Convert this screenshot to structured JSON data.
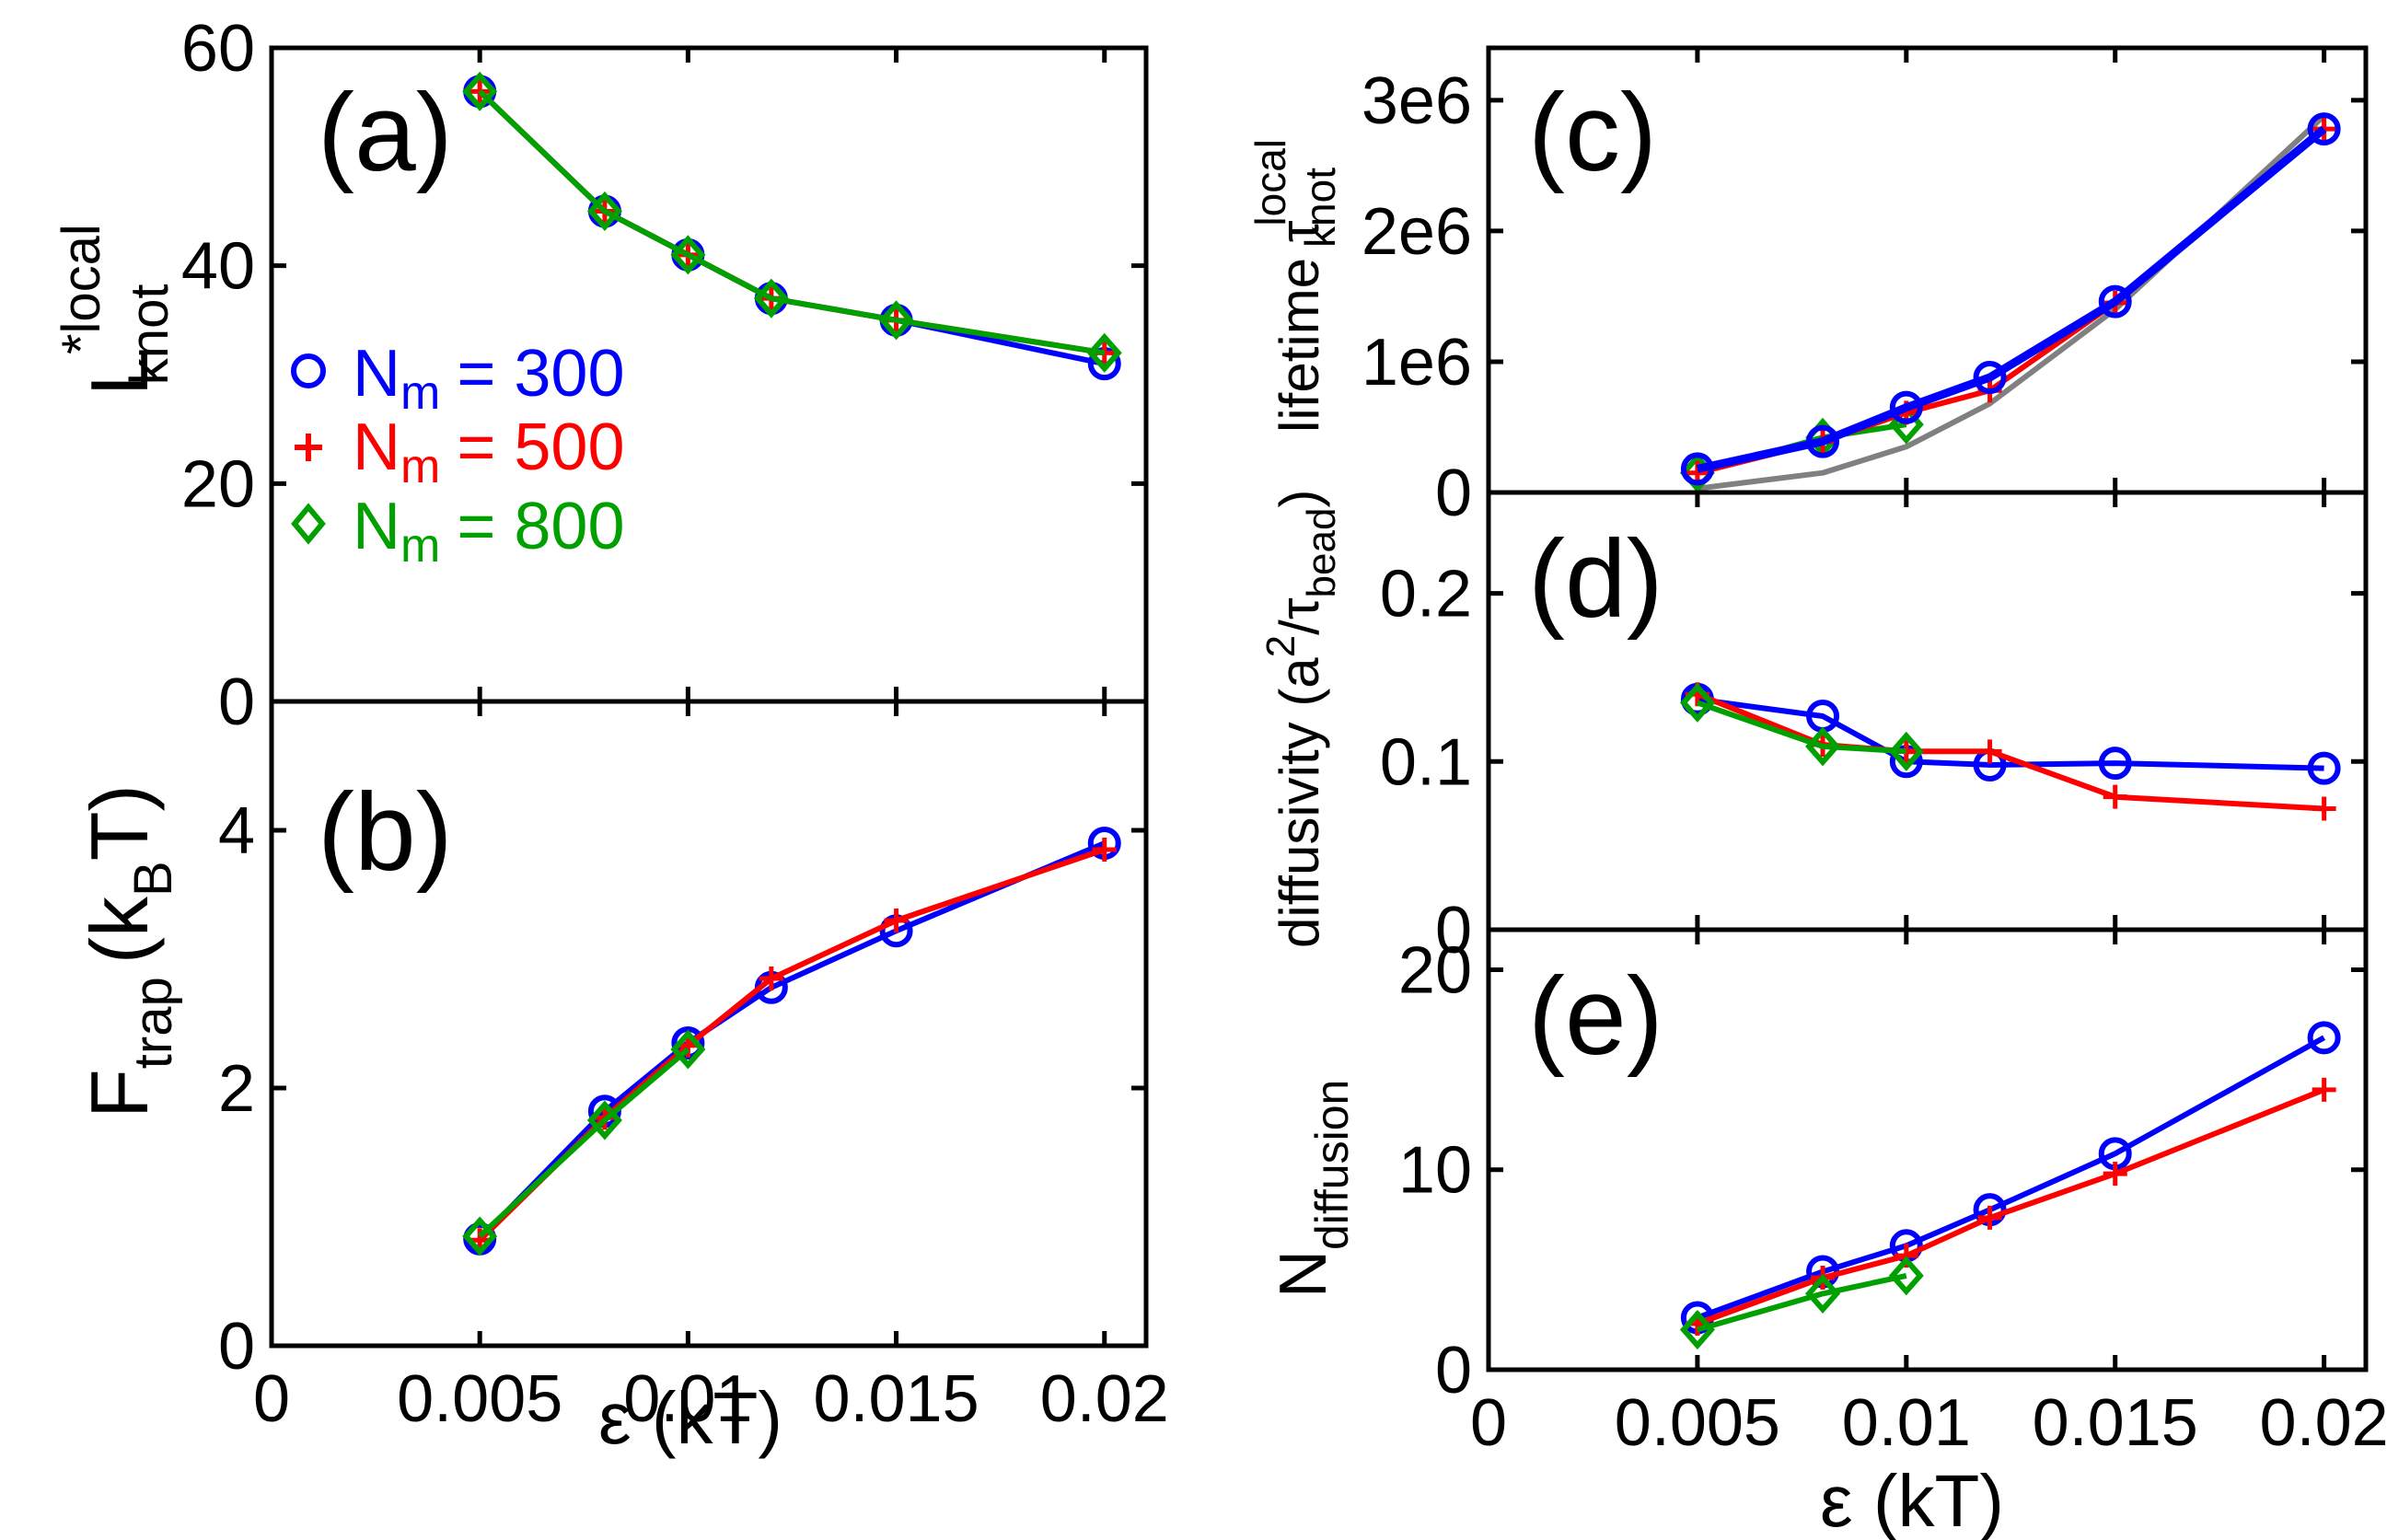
{
  "colors": {
    "n300": "#0000ff",
    "n500": "#ff0000",
    "n800": "#00a000",
    "ref": "#808080"
  },
  "xlabel": "ε (kT)",
  "legend": [
    {
      "label": "N",
      "sub": "m",
      "value": "= 300",
      "marker": "circle"
    },
    {
      "label": "N",
      "sub": "m",
      "value": "= 500",
      "marker": "plus"
    },
    {
      "label": "N",
      "sub": "m",
      "value": "= 800",
      "marker": "diamond"
    }
  ],
  "chart_data": [
    {
      "id": "a",
      "type": "line",
      "panel_label": "(a)",
      "ylabel": "L*local knot",
      "xlim": [
        0,
        0.021
      ],
      "ylim": [
        0,
        60
      ],
      "xticks": [
        0,
        0.005,
        0.01,
        0.015,
        0.02
      ],
      "xticklabels": [
        "0",
        "0.005",
        "0.01",
        "0.015",
        "0.02"
      ],
      "show_xticklabels": false,
      "yticks": [
        0,
        20,
        40,
        60
      ],
      "yticklabels": [
        "0",
        "20",
        "40",
        "60"
      ],
      "series": [
        {
          "name": "Nm = 300",
          "color_key": "n300",
          "marker": "circle",
          "x": [
            0.005,
            0.008,
            0.01,
            0.012,
            0.015,
            0.02
          ],
          "y": [
            56,
            45,
            41,
            37,
            35,
            31
          ]
        },
        {
          "name": "Nm = 500",
          "color_key": "n500",
          "marker": "plus",
          "x": [
            0.005,
            0.008,
            0.01,
            0.012,
            0.015,
            0.02
          ],
          "y": [
            56,
            45,
            41,
            37,
            35,
            32
          ]
        },
        {
          "name": "Nm = 800",
          "color_key": "n800",
          "marker": "diamond",
          "x": [
            0.005,
            0.008,
            0.01,
            0.012,
            0.015,
            0.02
          ],
          "y": [
            56,
            45,
            41,
            37,
            35,
            32
          ]
        }
      ]
    },
    {
      "id": "b",
      "type": "line",
      "panel_label": "(b)",
      "ylabel": "F trap (kBT)",
      "xlim": [
        0,
        0.021
      ],
      "ylim": [
        0,
        5
      ],
      "xticks": [
        0,
        0.005,
        0.01,
        0.015,
        0.02
      ],
      "xticklabels": [
        "0",
        "0.005",
        "0.01",
        "0.015",
        "0.02"
      ],
      "show_xticklabels": true,
      "yticks": [
        0,
        2,
        4
      ],
      "yticklabels": [
        "0",
        "2",
        "4"
      ],
      "series": [
        {
          "name": "Nm = 300",
          "color_key": "n300",
          "marker": "circle",
          "x": [
            0.005,
            0.008,
            0.01,
            0.012,
            0.015,
            0.02
          ],
          "y": [
            0.83,
            1.82,
            2.35,
            2.78,
            3.22,
            3.9
          ]
        },
        {
          "name": "Nm = 500",
          "color_key": "n500",
          "marker": "plus",
          "x": [
            0.005,
            0.008,
            0.01,
            0.012,
            0.015,
            0.02
          ],
          "y": [
            0.82,
            1.77,
            2.33,
            2.85,
            3.3,
            3.85
          ]
        },
        {
          "name": "Nm = 800",
          "color_key": "n800",
          "marker": "diamond",
          "x": [
            0.005,
            0.008,
            0.01
          ],
          "y": [
            0.85,
            1.75,
            2.3
          ]
        }
      ]
    },
    {
      "id": "c",
      "type": "line",
      "panel_label": "(c)",
      "ylabel": "lifetime τ local knot",
      "xlim": [
        0,
        0.021
      ],
      "ylim": [
        0,
        3400000
      ],
      "xticks": [
        0,
        0.005,
        0.01,
        0.015,
        0.02
      ],
      "xticklabels": [
        "0",
        "0.005",
        "0.01",
        "0.015",
        "0.02"
      ],
      "show_xticklabels": false,
      "yticks": [
        0,
        1000000,
        2000000,
        3000000
      ],
      "yticklabels": [
        "0",
        "1e6",
        "2e6",
        "3e6"
      ],
      "series": [
        {
          "name": "reference",
          "color_key": "ref",
          "marker": "none",
          "x": [
            0.005,
            0.008,
            0.01,
            0.012,
            0.015,
            0.02
          ],
          "y": [
            30000,
            150000,
            350000,
            680000,
            1400000,
            2880000
          ]
        },
        {
          "name": "Nm = 800",
          "color_key": "n800",
          "marker": "diamond",
          "x": [
            0.005,
            0.008,
            0.01
          ],
          "y": [
            150000,
            420000,
            520000
          ]
        },
        {
          "name": "Nm = 500",
          "color_key": "n500",
          "marker": "plus",
          "x": [
            0.005,
            0.008,
            0.01,
            0.012,
            0.015,
            0.02
          ],
          "y": [
            150000,
            390000,
            610000,
            780000,
            1450000,
            2780000
          ]
        },
        {
          "name": "Nm = 300",
          "color_key": "n300",
          "marker": "circle",
          "x": [
            0.005,
            0.008,
            0.01,
            0.012,
            0.015,
            0.02
          ],
          "y": [
            180000,
            390000,
            650000,
            880000,
            1460000,
            2780000
          ]
        }
      ]
    },
    {
      "id": "d",
      "type": "line",
      "panel_label": "(d)",
      "ylabel": "diffusivity (a2/τbead)",
      "xlim": [
        0,
        0.021
      ],
      "ylim": [
        0,
        0.26
      ],
      "xticks": [
        0,
        0.005,
        0.01,
        0.015,
        0.02
      ],
      "xticklabels": [
        "0",
        "0.005",
        "0.01",
        "0.015",
        "0.02"
      ],
      "show_xticklabels": false,
      "yticks": [
        0,
        0.1,
        0.2
      ],
      "yticklabels": [
        "0",
        "0.1",
        "0.2"
      ],
      "series": [
        {
          "name": "Nm = 300",
          "color_key": "n300",
          "marker": "circle",
          "x": [
            0.005,
            0.008,
            0.01,
            0.012,
            0.015,
            0.02
          ],
          "y": [
            0.137,
            0.127,
            0.1,
            0.098,
            0.099,
            0.096
          ]
        },
        {
          "name": "Nm = 500",
          "color_key": "n500",
          "marker": "plus",
          "x": [
            0.005,
            0.008,
            0.01,
            0.012,
            0.015,
            0.02
          ],
          "y": [
            0.14,
            0.11,
            0.106,
            0.106,
            0.079,
            0.072
          ]
        },
        {
          "name": "Nm = 800",
          "color_key": "n800",
          "marker": "diamond",
          "x": [
            0.005,
            0.008,
            0.01
          ],
          "y": [
            0.135,
            0.109,
            0.106
          ]
        }
      ]
    },
    {
      "id": "e",
      "type": "line",
      "panel_label": "(e)",
      "ylabel": "N diffusion",
      "xlim": [
        0,
        0.021
      ],
      "ylim": [
        0,
        22
      ],
      "xticks": [
        0,
        0.005,
        0.01,
        0.015,
        0.02
      ],
      "xticklabels": [
        "0",
        "0.005",
        "0.01",
        "0.015",
        "0.02"
      ],
      "show_xticklabels": true,
      "yticks": [
        0,
        10,
        20
      ],
      "yticklabels": [
        "0",
        "10",
        "20"
      ],
      "series": [
        {
          "name": "Nm = 300",
          "color_key": "n300",
          "marker": "circle",
          "x": [
            0.005,
            0.008,
            0.01,
            0.012,
            0.015,
            0.02
          ],
          "y": [
            2.6,
            4.9,
            6.2,
            8.0,
            10.8,
            16.6
          ]
        },
        {
          "name": "Nm = 500",
          "color_key": "n500",
          "marker": "plus",
          "x": [
            0.005,
            0.008,
            0.01,
            0.012,
            0.015,
            0.02
          ],
          "y": [
            2.3,
            4.6,
            5.7,
            7.6,
            9.8,
            14.0
          ]
        },
        {
          "name": "Nm = 800",
          "color_key": "n800",
          "marker": "diamond",
          "x": [
            0.005,
            0.008,
            0.01
          ],
          "y": [
            2.0,
            3.8,
            4.7
          ]
        }
      ]
    }
  ]
}
